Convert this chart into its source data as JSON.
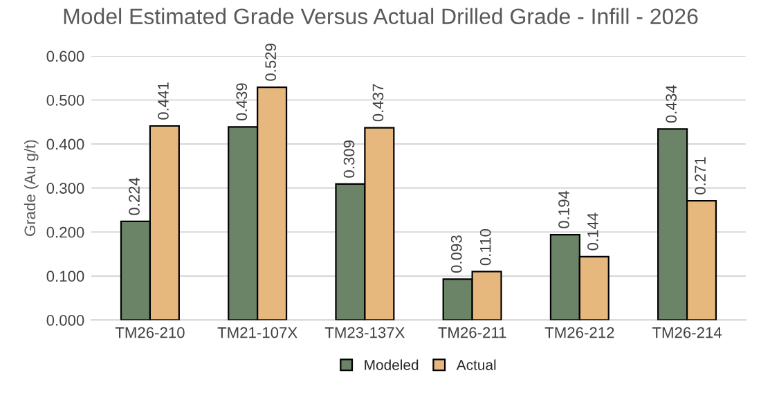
{
  "chart_data": {
    "type": "bar",
    "title": "Model Estimated Grade Versus Actual Drilled Grade - Infill - 2026",
    "ylabel": "Grade (Au g/t)",
    "categories": [
      "TM26-210",
      "TM21-107X",
      "TM23-137X",
      "TM26-211",
      "TM26-212",
      "TM26-214"
    ],
    "series": [
      {
        "name": "Modeled",
        "color": "#6b8468",
        "values": [
          0.224,
          0.439,
          0.309,
          0.093,
          0.194,
          0.434
        ],
        "value_labels": [
          "0.224",
          "0.439",
          "0.309",
          "0.093",
          "0.194",
          "0.434"
        ]
      },
      {
        "name": "Actual",
        "color": "#e6b87e",
        "values": [
          0.441,
          0.529,
          0.437,
          0.11,
          0.144,
          0.271
        ],
        "value_labels": [
          "0.441",
          "0.529",
          "0.437",
          "0.110",
          "0.144",
          "0.271"
        ]
      }
    ],
    "ylim": [
      0,
      0.6
    ],
    "yticks": [
      {
        "value": 0,
        "label": "0.000"
      },
      {
        "value": 0.1,
        "label": "0.100"
      },
      {
        "value": 0.2,
        "label": "0.200"
      },
      {
        "value": 0.3,
        "label": "0.300"
      },
      {
        "value": 0.4,
        "label": "0.400"
      },
      {
        "value": 0.5,
        "label": "0.500"
      },
      {
        "value": 0.6,
        "label": "0.600"
      }
    ],
    "grid": "y",
    "legend": "bottom"
  }
}
